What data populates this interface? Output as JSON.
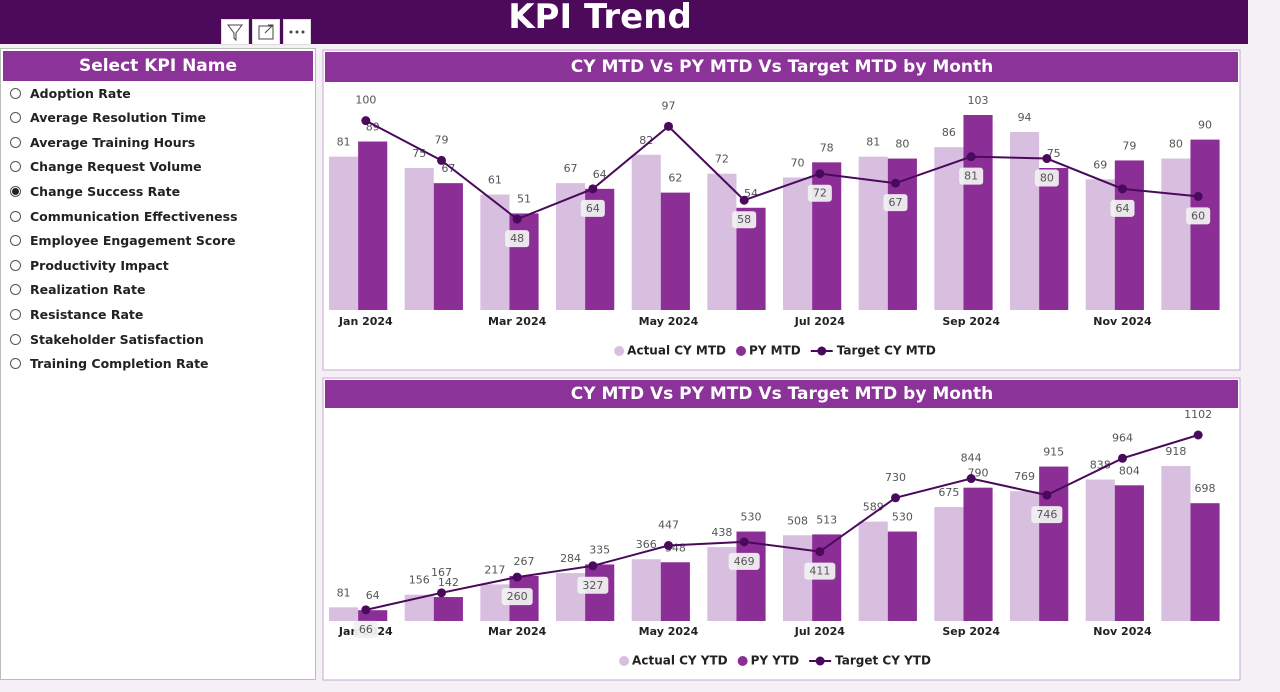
{
  "header": {
    "title": "KPI Trend"
  },
  "slicer": {
    "title": "Select KPI Name",
    "items": [
      "Adoption Rate",
      "Average Resolution Time",
      "Average Training Hours",
      "Change Request Volume",
      "Change Success Rate",
      "Communication Effectiveness",
      "Employee Engagement Score",
      "Productivity Impact",
      "Realization Rate",
      "Resistance Rate",
      "Stakeholder Satisfaction",
      "Training Completion Rate"
    ],
    "selected": 4
  },
  "chart_data": [
    {
      "type": "combo",
      "title": "CY MTD Vs PY MTD Vs Target MTD by Month",
      "categories": [
        "Jan 2024",
        null,
        "Mar 2024",
        null,
        "May 2024",
        null,
        "Jul 2024",
        null,
        "Sep 2024",
        null,
        "Nov 2024",
        null
      ],
      "series": [
        {
          "name": "Actual CY MTD",
          "type": "bar",
          "color": "#d8bfe0",
          "values": [
            81,
            75,
            61,
            67,
            82,
            72,
            70,
            81,
            86,
            94,
            69,
            80
          ]
        },
        {
          "name": "PY MTD",
          "type": "bar",
          "color": "#8b2f97",
          "values": [
            89,
            67,
            51,
            64,
            62,
            54,
            78,
            80,
            103,
            75,
            79,
            90
          ]
        },
        {
          "name": "Target CY MTD",
          "type": "line",
          "color": "#4a0a5c",
          "values": [
            100,
            79,
            48,
            64,
            97,
            58,
            72,
            67,
            81,
            80,
            64,
            60
          ]
        }
      ]
    },
    {
      "type": "combo",
      "title": "CY MTD Vs PY MTD Vs Target MTD by Month",
      "categories": [
        "Jan 2024",
        null,
        "Mar 2024",
        null,
        "May 2024",
        null,
        "Jul 2024",
        null,
        "Sep 2024",
        null,
        "Nov 2024",
        null
      ],
      "series": [
        {
          "name": "Actual CY YTD",
          "type": "bar",
          "color": "#d8bfe0",
          "values": [
            81,
            156,
            217,
            284,
            366,
            438,
            508,
            589,
            675,
            769,
            838,
            918
          ]
        },
        {
          "name": "PY YTD",
          "type": "bar",
          "color": "#8b2f97",
          "values": [
            64,
            142,
            267,
            335,
            348,
            530,
            513,
            530,
            790,
            915,
            804,
            698
          ]
        },
        {
          "name": "Target CY YTD",
          "type": "line",
          "color": "#4a0a5c",
          "values": [
            66,
            167,
            260,
            327,
            447,
            469,
            411,
            730,
            844,
            746,
            964,
            1102
          ]
        }
      ]
    }
  ]
}
